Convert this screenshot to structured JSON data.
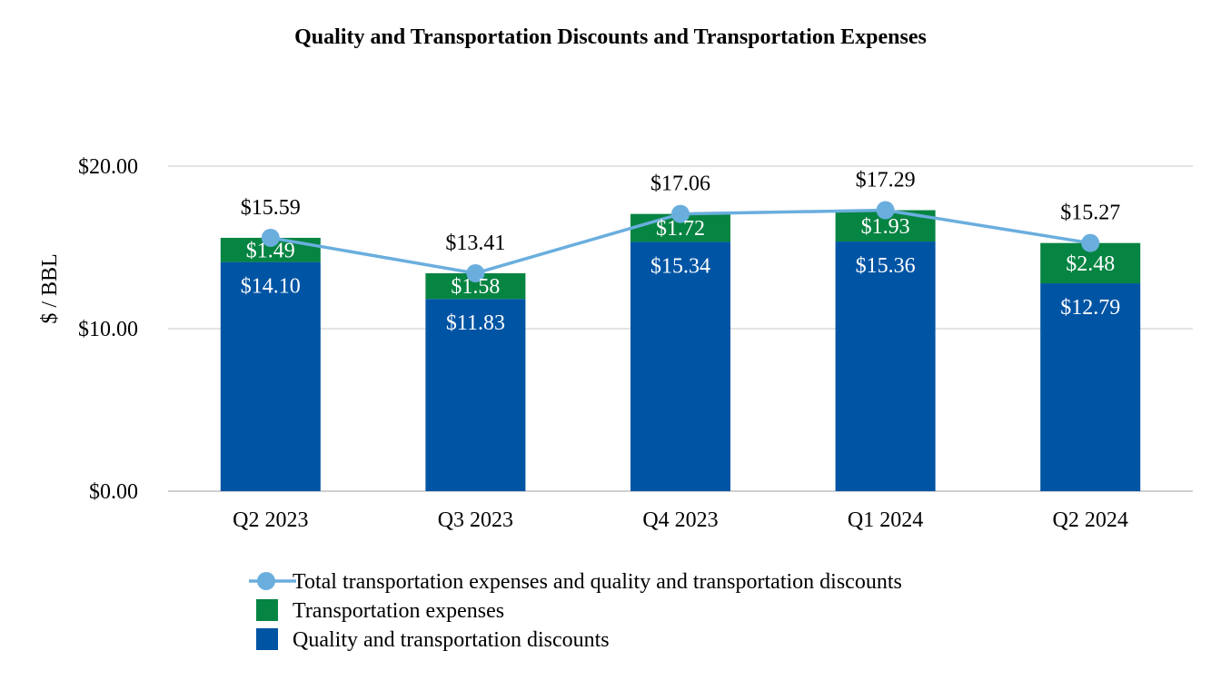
{
  "chart_data": {
    "type": "bar",
    "title": "Quality and Transportation Discounts and Transportation Expenses",
    "xlabel": "",
    "ylabel": "$ / BBL",
    "categories": [
      "Q2 2023",
      "Q3 2023",
      "Q4 2023",
      "Q1 2024",
      "Q2 2024"
    ],
    "ylim": [
      0,
      20
    ],
    "yticks": [
      0,
      10,
      20
    ],
    "ytick_labels": [
      "$0.00",
      "$10.00",
      "$20.00"
    ],
    "grid": true,
    "stacked": true,
    "series": [
      {
        "name": "Quality and transportation discounts",
        "kind": "bar",
        "color": "#0054A4",
        "values": [
          14.1,
          11.83,
          15.34,
          15.36,
          12.79
        ],
        "labels": [
          "$14.10",
          "$11.83",
          "$15.34",
          "$15.36",
          "$12.79"
        ]
      },
      {
        "name": "Transportation expenses",
        "kind": "bar",
        "color": "#068442",
        "values": [
          1.49,
          1.58,
          1.72,
          1.93,
          2.48
        ],
        "labels": [
          "$1.49",
          "$1.58",
          "$1.72",
          "$1.93",
          "$2.48"
        ]
      },
      {
        "name": "Total transportation expenses and quality and transportation discounts",
        "kind": "line",
        "color": "#6AAEDE",
        "values": [
          15.59,
          13.41,
          17.06,
          17.29,
          15.27
        ],
        "labels": [
          "$15.59",
          "$13.41",
          "$17.06",
          "$17.29",
          "$15.27"
        ]
      }
    ],
    "legend": {
      "position": "bottom",
      "order": [
        2,
        1,
        0
      ]
    }
  }
}
